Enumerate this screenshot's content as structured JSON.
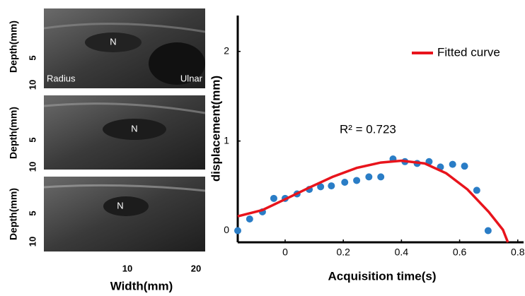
{
  "ultrasound": {
    "panels": [
      {
        "labels": [
          "N",
          "Radius",
          "Ulnar"
        ],
        "y_axis_label": "Depth(mm)",
        "y_tick_labels": [
          "5",
          "10"
        ]
      },
      {
        "labels": [
          "N"
        ],
        "y_axis_label": "Depth(mm)",
        "y_tick_labels": [
          "5",
          "10"
        ]
      },
      {
        "labels": [
          "N"
        ],
        "y_axis_label": "Depth(mm)",
        "y_tick_labels": [
          "5",
          "10"
        ]
      }
    ],
    "x_tick_labels": [
      "10",
      "20"
    ],
    "x_axis_label": "Width(mm)"
  },
  "chart_data": {
    "type": "scatter",
    "xlabel": "Acquisition time(s)",
    "ylabel": "displacement(mm)",
    "annotation": "R² = 0.723",
    "legend": "upper right",
    "xlim": [
      -0.163,
      0.82
    ],
    "ylim": [
      -0.13,
      2.4
    ],
    "xticks": [
      0,
      0.2,
      0.4,
      0.6,
      0.8
    ],
    "yticks": [
      0,
      1,
      2
    ],
    "series": [
      {
        "color": "#2a7dc6",
        "x": [
          -0.163,
          -0.122,
          -0.078,
          -0.039,
          0.0,
          0.041,
          0.083,
          0.122,
          0.159,
          0.205,
          0.246,
          0.288,
          0.329,
          0.371,
          0.412,
          0.454,
          0.495,
          0.534,
          0.576,
          0.617,
          0.659,
          0.698
        ],
        "values": [
          0.0,
          0.13,
          0.21,
          0.36,
          0.36,
          0.41,
          0.46,
          0.49,
          0.5,
          0.54,
          0.56,
          0.6,
          0.6,
          0.8,
          0.77,
          0.75,
          0.77,
          0.71,
          0.74,
          0.72,
          0.45,
          0.0
        ]
      },
      {
        "name": "Fitted curve",
        "type": "line",
        "color": "#e8141c",
        "x": [
          -0.163,
          -0.078,
          0.0,
          0.083,
          0.163,
          0.246,
          0.329,
          0.4,
          0.48,
          0.554,
          0.627,
          0.7,
          0.749,
          0.766
        ],
        "values": [
          0.16,
          0.23,
          0.35,
          0.48,
          0.6,
          0.7,
          0.76,
          0.78,
          0.75,
          0.64,
          0.46,
          0.21,
          0.01,
          -0.13
        ]
      }
    ]
  }
}
